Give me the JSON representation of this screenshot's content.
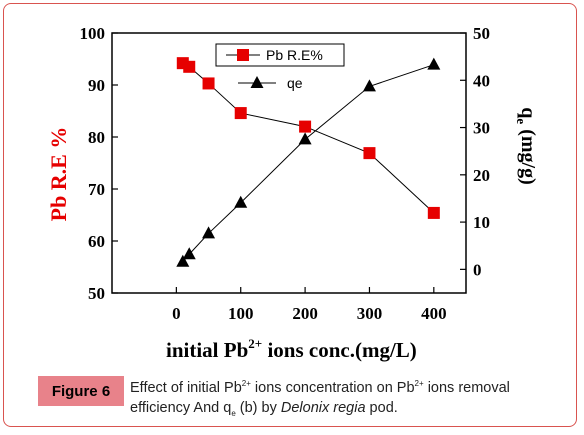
{
  "chart_data": {
    "type": "line",
    "xlabel": {
      "pre": "initial Pb",
      "sup": "2+",
      "post": " ions conc.(mg/L)"
    },
    "ylabel_left": "Pb R.E %",
    "ylabel_right": {
      "pre": "q",
      "sub": "e",
      "post": " (mg/g)"
    },
    "xlim": [
      -100,
      450
    ],
    "xticks": [
      0,
      100,
      200,
      300,
      400
    ],
    "ylim_left": [
      50,
      100
    ],
    "yticks_left": [
      50,
      60,
      70,
      80,
      90,
      100
    ],
    "ylim_right": [
      -5,
      50
    ],
    "yticks_right": [
      0,
      10,
      20,
      30,
      40,
      50
    ],
    "legend_position": "top-right",
    "series": [
      {
        "name": "Pb R.E%",
        "axis": "left",
        "marker": "square",
        "color": "#e60000",
        "x": [
          10,
          20,
          50,
          100,
          200,
          300,
          400
        ],
        "y": [
          94.2,
          93.5,
          90.3,
          84.6,
          82.0,
          76.9,
          65.4
        ]
      },
      {
        "name": "qe",
        "axis": "right",
        "marker": "triangle",
        "color": "#000000",
        "x": [
          10,
          20,
          50,
          100,
          200,
          300,
          400
        ],
        "y": [
          1.6,
          3.2,
          7.6,
          14.1,
          27.5,
          38.7,
          43.3
        ]
      }
    ]
  },
  "caption": {
    "label": "Figure 6",
    "t1": "Effect of initial Pb",
    "s1": "2+",
    "t2": " ions concentration on Pb",
    "s2": "2+",
    "t3": " ions removal efficiency And q",
    "s3": "e",
    "t4": " (b) by ",
    "species": "Delonix regia",
    "t5": " pod."
  }
}
